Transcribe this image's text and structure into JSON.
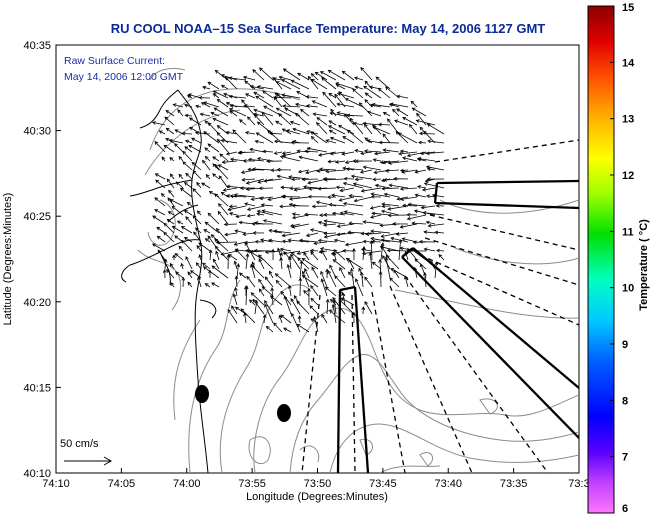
{
  "title": "RU COOL  NOAA–15  Sea Surface Temperature:  May 14, 2006 1127 GMT",
  "inset": {
    "line1": "Raw Surface Current:",
    "line2": "May 14, 2006 12:00 GMT"
  },
  "scale": {
    "label": "50 cm/s"
  },
  "axes": {
    "xlabel": "Longitude (Degrees:Minutes)",
    "ylabel": "Latitude (Degrees:Minutes)",
    "xticks": [
      "74:10",
      "74:05",
      "74:00",
      "73:55",
      "73:50",
      "73:45",
      "73:40",
      "73:35",
      "73:3"
    ],
    "yticks": [
      "40:35",
      "40:30",
      "40:25",
      "40:20",
      "40:15",
      "40:10"
    ]
  },
  "colorbar": {
    "title": "Temperature ( °C)",
    "ticks": [
      "15",
      "14",
      "13",
      "12",
      "11",
      "10",
      "9",
      "8",
      "7",
      "6"
    ]
  },
  "colors": {
    "title": "#0b2a9a",
    "inset": "#1a2fa0",
    "contour": "#8c8c8c",
    "vectors": "#000000"
  }
}
